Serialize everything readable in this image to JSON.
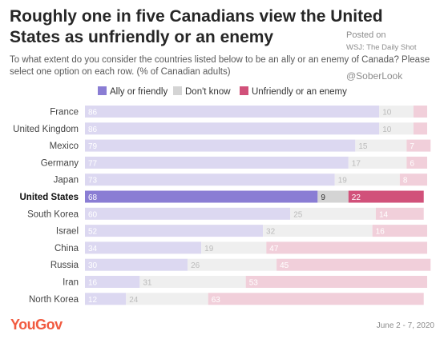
{
  "title": "Roughly one in five Canadians view the United States as unfriendly or an enemy",
  "subtitle": "To what extent do you consider the countries listed below to be an ally or an enemy of Canada? Please select one option on each row. (% of Canadian adults)",
  "watermark": {
    "line1": "Posted on",
    "line2": "WSJ: The Daily Shot",
    "line3": "@SoberLook"
  },
  "footer": {
    "logo": "YouGov",
    "date": "June 2 - 7, 2020"
  },
  "chart_data": {
    "type": "bar",
    "orientation": "horizontal",
    "stacked": true,
    "legend_position": "top",
    "categories": [
      "France",
      "United Kingdom",
      "Mexico",
      "Germany",
      "Japan",
      "United States",
      "South Korea",
      "Israel",
      "China",
      "Russia",
      "Iran",
      "North Korea"
    ],
    "highlight_category": "United States",
    "series": [
      {
        "name": "Ally or friendly",
        "values": [
          86,
          86,
          79,
          77,
          73,
          68,
          60,
          52,
          34,
          30,
          16,
          12
        ]
      },
      {
        "name": "Don't know",
        "values": [
          10,
          10,
          15,
          17,
          19,
          9,
          25,
          32,
          19,
          26,
          31,
          24
        ]
      },
      {
        "name": "Unfriendly or an enemy",
        "values": [
          4,
          4,
          7,
          6,
          8,
          22,
          14,
          16,
          47,
          45,
          53,
          63
        ]
      }
    ],
    "value_labels": [
      [
        "86",
        "10",
        ""
      ],
      [
        "86",
        "10",
        ""
      ],
      [
        "79",
        "15",
        "7"
      ],
      [
        "77",
        "17",
        "6"
      ],
      [
        "73",
        "19",
        "8"
      ],
      [
        "68",
        "9",
        "22"
      ],
      [
        "60",
        "25",
        "14"
      ],
      [
        "52",
        "32",
        "16"
      ],
      [
        "34",
        "19",
        "47"
      ],
      [
        "30",
        "26",
        "45"
      ],
      [
        "16",
        "31",
        "53"
      ],
      [
        "12",
        "24",
        "63"
      ]
    ],
    "colors": {
      "ally": "#8a7dd4",
      "ally_faded": "#dcd8f1",
      "dontknow": "#d4d4d4",
      "dontknow_faded": "#efefef",
      "enemy": "#d1517a",
      "enemy_faded": "#f1cfda"
    },
    "xlim": [
      0,
      100
    ],
    "grid": false
  }
}
